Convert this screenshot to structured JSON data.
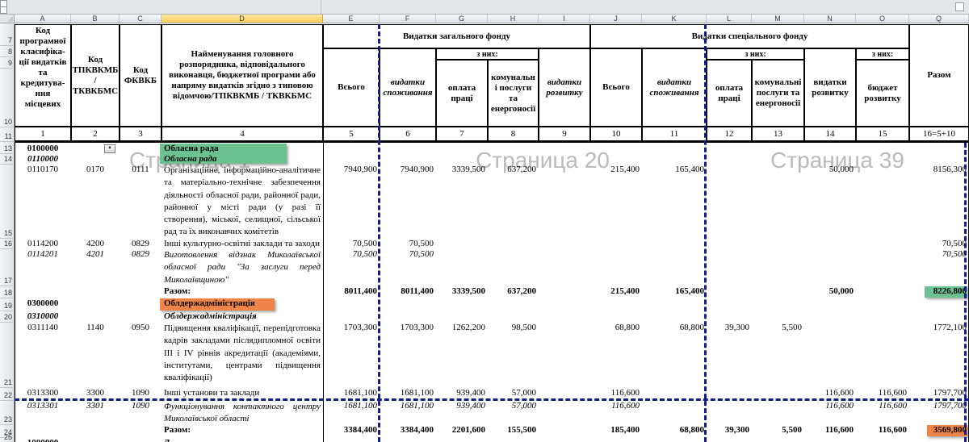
{
  "sheet": {
    "mode_watermarks": [
      {
        "text": "Страница 1"
      },
      {
        "text": "Страница 20"
      },
      {
        "text": "Страница 39"
      }
    ],
    "columns": [
      "A",
      "B",
      "C",
      "D",
      "E",
      "F",
      "G",
      "H",
      "I",
      "J",
      "K",
      "L",
      "M",
      "N",
      "O",
      "Q"
    ],
    "selected_column": "D",
    "row_numbers_header": [
      "7",
      "8",
      "9",
      "10",
      "11"
    ],
    "hidden_rows": [
      "12"
    ],
    "hidden_columns": [
      "P"
    ]
  },
  "header": {
    "col_a": "Код програмної класифіка-ції видатків та кредитува-ння місцевих",
    "col_b": "Код ТПКВКМБ / ТКВКБМС",
    "col_c": "Код ФКВКБ",
    "col_d": "Найменування головного розпорядника, відповідального виконавця, бюджетної програми або напряму видатків згідно з типовою відомчою/ТПКВКМБ / ТКВКБМС",
    "group_general": "Видатки загального фонду",
    "group_special": "Видатки спеціального фонду",
    "of_which": "з них:",
    "total": "Всього",
    "consumption": "видатки споживання",
    "salary": "оплата праці",
    "utilities": "комунальні послуги та енергоносії",
    "development": "видатки розвитку",
    "dev_budget": "бюджет розвитку",
    "razom": "Разом",
    "numbering": [
      "1",
      "2",
      "3",
      "4",
      "5",
      "6",
      "7",
      "8",
      "9",
      "10",
      "11",
      "12",
      "13",
      "14",
      "15",
      "16=5+10"
    ]
  },
  "colors": {
    "green": "#6cc191",
    "orange": "#ef8449",
    "page_break_blue": "#141c8c",
    "selected_col_fill": "#F9CE54"
  },
  "rows": [
    {
      "n": "13",
      "cells": [
        {
          "c": "A",
          "t": "0100000",
          "b": 1
        },
        {
          "c": "D",
          "t": "Обласна рада",
          "b": 1
        }
      ],
      "dropdown_in": "B"
    },
    {
      "n": "14",
      "cells": [
        {
          "c": "A",
          "t": "0110000",
          "b": 1,
          "i": 1
        },
        {
          "c": "D",
          "t": "Обласна рада",
          "b": 1,
          "i": 1
        }
      ]
    },
    {
      "n": "15",
      "cells": [
        {
          "c": "A",
          "t": "0110170"
        },
        {
          "c": "B",
          "t": "0170"
        },
        {
          "c": "C",
          "t": "0111"
        },
        {
          "c": "D",
          "t": "Організаційне, інформаційно-аналітичне та матеріально-технічне забезпечення діяльності обласної ради, районної ради, районної у місті ради (у разі її створення), міської, селищної, сільської рад та їх виконавчих комітетів",
          "ml": 1
        },
        {
          "c": "E",
          "t": "7940,900"
        },
        {
          "c": "F",
          "t": "7940,900"
        },
        {
          "c": "G",
          "t": "3339,500"
        },
        {
          "c": "H",
          "t": "637,200"
        },
        {
          "c": "J",
          "t": "215,400"
        },
        {
          "c": "K",
          "t": "165,400"
        },
        {
          "c": "N",
          "t": "50,000"
        },
        {
          "c": "Q",
          "t": "8156,300"
        }
      ]
    },
    {
      "n": "16",
      "cells": [
        {
          "c": "A",
          "t": "0114200"
        },
        {
          "c": "B",
          "t": "4200"
        },
        {
          "c": "C",
          "t": "0829"
        },
        {
          "c": "D",
          "t": "Інші культурно-освітні заклади та заходи"
        },
        {
          "c": "E",
          "t": "70,500"
        },
        {
          "c": "F",
          "t": "70,500"
        },
        {
          "c": "Q",
          "t": "70,500"
        }
      ]
    },
    {
      "n": "17",
      "italic": 1,
      "cells": [
        {
          "c": "A",
          "t": "0114201"
        },
        {
          "c": "B",
          "t": "4201"
        },
        {
          "c": "C",
          "t": "0829"
        },
        {
          "c": "D",
          "t": "Виготовлення відзнак Миколаївської обласної ради \"За заслуги перед Миколаївщиною\"",
          "ml": 1
        },
        {
          "c": "E",
          "t": "70,500"
        },
        {
          "c": "F",
          "t": "70,500"
        },
        {
          "c": "Q",
          "t": "70,500"
        }
      ]
    },
    {
      "n": "18",
      "bold": 1,
      "cells": [
        {
          "c": "D",
          "t": "Разом:"
        },
        {
          "c": "E",
          "t": "8011,400"
        },
        {
          "c": "F",
          "t": "8011,400"
        },
        {
          "c": "G",
          "t": "3339,500"
        },
        {
          "c": "H",
          "t": "637,200"
        },
        {
          "c": "J",
          "t": "215,400"
        },
        {
          "c": "K",
          "t": "165,400"
        },
        {
          "c": "N",
          "t": "50,000"
        },
        {
          "c": "Q",
          "t": "8226,800"
        }
      ]
    },
    {
      "n": "19",
      "cells": [
        {
          "c": "A",
          "t": "0300000",
          "b": 1
        },
        {
          "c": "D",
          "t": "Облдержадміністрація",
          "b": 1
        }
      ]
    },
    {
      "n": "20",
      "cells": [
        {
          "c": "A",
          "t": "0310000",
          "b": 1,
          "i": 1
        },
        {
          "c": "D",
          "t": "Облдержадміністрація",
          "b": 1,
          "i": 1
        }
      ]
    },
    {
      "n": "21",
      "cells": [
        {
          "c": "A",
          "t": "0311140"
        },
        {
          "c": "B",
          "t": "1140"
        },
        {
          "c": "C",
          "t": "0950"
        },
        {
          "c": "D",
          "t": "Підвищення кваліфікації, перепідготовка кадрів закладами післядипломної освіти III і IV рівнів акредитації (академіями, інститутами, центрами підвищення кваліфікації)",
          "ml": 1
        },
        {
          "c": "E",
          "t": "1703,300"
        },
        {
          "c": "F",
          "t": "1703,300"
        },
        {
          "c": "G",
          "t": "1262,200"
        },
        {
          "c": "H",
          "t": "98,500"
        },
        {
          "c": "J",
          "t": "68,800"
        },
        {
          "c": "K",
          "t": "68,800"
        },
        {
          "c": "L",
          "t": "39,300"
        },
        {
          "c": "M",
          "t": "5,500"
        },
        {
          "c": "Q",
          "t": "1772,100"
        }
      ]
    },
    {
      "n": "22",
      "cells": [
        {
          "c": "A",
          "t": "0313300"
        },
        {
          "c": "B",
          "t": "3300"
        },
        {
          "c": "C",
          "t": "1090"
        },
        {
          "c": "D",
          "t": "Інші установи та заклади"
        },
        {
          "c": "E",
          "t": "1681,100"
        },
        {
          "c": "F",
          "t": "1681,100"
        },
        {
          "c": "G",
          "t": "939,400"
        },
        {
          "c": "H",
          "t": "57,000"
        },
        {
          "c": "J",
          "t": "116,600"
        },
        {
          "c": "N",
          "t": "116,600"
        },
        {
          "c": "O",
          "t": "116,600"
        },
        {
          "c": "Q",
          "t": "1797,700"
        }
      ]
    },
    {
      "n": "23",
      "italic": 1,
      "cells": [
        {
          "c": "A",
          "t": "0313301"
        },
        {
          "c": "B",
          "t": "3301"
        },
        {
          "c": "C",
          "t": "1090"
        },
        {
          "c": "D",
          "t": "Функціонування контактного центру Миколаївської області",
          "ml": 1
        },
        {
          "c": "E",
          "t": "1681,100"
        },
        {
          "c": "F",
          "t": "1681,100"
        },
        {
          "c": "G",
          "t": "939,400"
        },
        {
          "c": "H",
          "t": "57,000"
        },
        {
          "c": "J",
          "t": "116,600"
        },
        {
          "c": "N",
          "t": "116,600"
        },
        {
          "c": "O",
          "t": "116,600"
        },
        {
          "c": "Q",
          "t": "1797,700"
        }
      ]
    },
    {
      "n": "24",
      "bold": 1,
      "cells": [
        {
          "c": "D",
          "t": "Разом:"
        },
        {
          "c": "E",
          "t": "3384,400"
        },
        {
          "c": "F",
          "t": "3384,400"
        },
        {
          "c": "G",
          "t": "2201,600"
        },
        {
          "c": "H",
          "t": "155,500"
        },
        {
          "c": "J",
          "t": "185,400"
        },
        {
          "c": "K",
          "t": "68,800"
        },
        {
          "c": "L",
          "t": "39,300"
        },
        {
          "c": "M",
          "t": "5,500"
        },
        {
          "c": "N",
          "t": "116,600"
        },
        {
          "c": "O",
          "t": "116,600"
        },
        {
          "c": "Q",
          "t": "3569,800"
        }
      ]
    },
    {
      "n": "25",
      "cells": [
        {
          "c": "A",
          "t": "1000000",
          "b": 1
        },
        {
          "c": "D",
          "t": "Д",
          "b": 1
        }
      ]
    }
  ],
  "highlights": [
    {
      "target": "D13:D14",
      "label": "Обласна рада",
      "color": "green"
    },
    {
      "target": "D19",
      "label": "Облдержадміністрація",
      "color": "orange"
    },
    {
      "target": "Q18",
      "label": "8226,800",
      "color": "green"
    },
    {
      "target": "Q24",
      "label": "3569,800",
      "color": "orange"
    }
  ]
}
